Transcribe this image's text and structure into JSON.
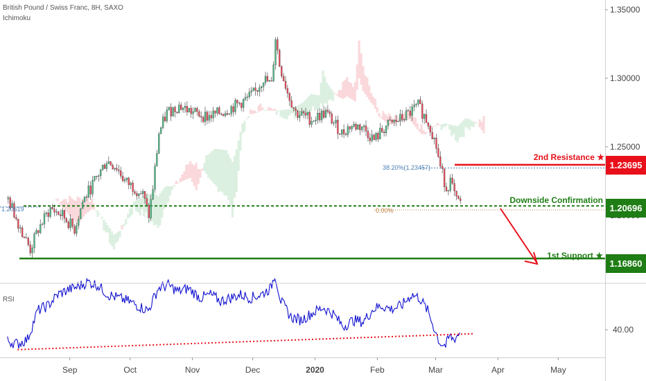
{
  "header": {
    "title": "British Pound / Swiss Franc, 8H, SAXO",
    "indicator": "Ichimoku",
    "rsi_label": "RSI"
  },
  "colors": {
    "up": "#53b987",
    "down": "#eb4d5c",
    "resistance": "#e8101a",
    "support": "#1e7d14",
    "rsi": "#1010d0",
    "fib": "#4a7fb5",
    "cloud_red": "#f8c9cd",
    "cloud_green": "#cfe9d6"
  },
  "annotations": {
    "resistance_label": "2nd Resistance ★",
    "resistance_value": "1.23695",
    "confirm_label": "Downside Confirmation",
    "confirm_value": "1.20696",
    "support_label": "1st Support ★",
    "support_value": "1.16860",
    "fib_label": "38.20%(1.23457)",
    "left_label": "1.20619",
    "fib_zero_label": "0.00%"
  },
  "chart_data": [
    {
      "type": "candlestick",
      "title": "British Pound / Swiss Franc, 8H, SAXO",
      "y_ticks": [
        "1.35000",
        "1.30000",
        "1.25000",
        "1.20000"
      ],
      "x_ticks": [
        "Sep",
        "Oct",
        "Nov",
        "Dec",
        "2020",
        "Feb",
        "Mar",
        "Apr",
        "May"
      ],
      "ylim": [
        1.155,
        1.355
      ],
      "levels": [
        {
          "name": "2nd Resistance",
          "value": 1.23695
        },
        {
          "name": "Downside Confirmation",
          "value": 1.20696
        },
        {
          "name": "1st Support",
          "value": 1.1686
        }
      ],
      "fib_level": {
        "label": "38.20%",
        "value": 1.23457
      },
      "close_anchors": [
        [
          "2019-08-01",
          1.212
        ],
        [
          "2019-08-08",
          1.188
        ],
        [
          "2019-08-12",
          1.175
        ],
        [
          "2019-08-16",
          1.19
        ],
        [
          "2019-08-22",
          1.205
        ],
        [
          "2019-08-28",
          1.2
        ],
        [
          "2019-09-03",
          1.19
        ],
        [
          "2019-09-07",
          1.21
        ],
        [
          "2019-09-13",
          1.225
        ],
        [
          "2019-09-19",
          1.24
        ],
        [
          "2019-09-24",
          1.235
        ],
        [
          "2019-09-28",
          1.225
        ],
        [
          "2019-10-03",
          1.22
        ],
        [
          "2019-10-07",
          1.215
        ],
        [
          "2019-10-10",
          1.2
        ],
        [
          "2019-10-12",
          1.22
        ],
        [
          "2019-10-15",
          1.26
        ],
        [
          "2019-10-19",
          1.275
        ],
        [
          "2019-10-25",
          1.28
        ],
        [
          "2019-11-01",
          1.275
        ],
        [
          "2019-11-08",
          1.272
        ],
        [
          "2019-11-15",
          1.275
        ],
        [
          "2019-11-22",
          1.28
        ],
        [
          "2019-11-28",
          1.285
        ],
        [
          "2019-12-02",
          1.29
        ],
        [
          "2019-12-06",
          1.3
        ],
        [
          "2019-12-10",
          1.295
        ],
        [
          "2019-12-12",
          1.33
        ],
        [
          "2019-12-14",
          1.31
        ],
        [
          "2019-12-18",
          1.29
        ],
        [
          "2019-12-22",
          1.275
        ],
        [
          "2019-12-30",
          1.27
        ],
        [
          "2020-01-06",
          1.275
        ],
        [
          "2020-01-14",
          1.26
        ],
        [
          "2020-01-18",
          1.265
        ],
        [
          "2020-01-24",
          1.265
        ],
        [
          "2020-01-30",
          1.255
        ],
        [
          "2020-02-05",
          1.265
        ],
        [
          "2020-02-12",
          1.27
        ],
        [
          "2020-02-17",
          1.275
        ],
        [
          "2020-02-21",
          1.28
        ],
        [
          "2020-02-25",
          1.27
        ],
        [
          "2020-02-27",
          1.265
        ],
        [
          "2020-03-01",
          1.25
        ],
        [
          "2020-03-03",
          1.235
        ],
        [
          "2020-03-06",
          1.22
        ],
        [
          "2020-03-08",
          1.225
        ],
        [
          "2020-03-11",
          1.21
        ],
        [
          "2020-03-13",
          1.21
        ]
      ]
    },
    {
      "type": "line",
      "title": "RSI",
      "y_ticks": [
        "40.00"
      ],
      "ylim": [
        20,
        85
      ],
      "trendline": {
        "x": [
          "2019-08-06",
          "2020-03-20"
        ],
        "y": [
          27.5,
          37.5
        ]
      },
      "rsi_anchors": [
        [
          "2019-08-01",
          33
        ],
        [
          "2019-08-06",
          31
        ],
        [
          "2019-08-11",
          34
        ],
        [
          "2019-08-16",
          52
        ],
        [
          "2019-08-21",
          55
        ],
        [
          "2019-08-26",
          62
        ],
        [
          "2019-08-31",
          65
        ],
        [
          "2019-09-05",
          67
        ],
        [
          "2019-09-10",
          70
        ],
        [
          "2019-09-15",
          68
        ],
        [
          "2019-09-20",
          62
        ],
        [
          "2019-09-25",
          60
        ],
        [
          "2019-09-30",
          58
        ],
        [
          "2019-10-05",
          55
        ],
        [
          "2019-10-10",
          52
        ],
        [
          "2019-10-15",
          66
        ],
        [
          "2019-10-20",
          68
        ],
        [
          "2019-10-25",
          64
        ],
        [
          "2019-10-30",
          66
        ],
        [
          "2019-11-05",
          60
        ],
        [
          "2019-11-10",
          62
        ],
        [
          "2019-11-15",
          58
        ],
        [
          "2019-11-20",
          60
        ],
        [
          "2019-11-25",
          62
        ],
        [
          "2019-11-30",
          60
        ],
        [
          "2019-12-05",
          62
        ],
        [
          "2019-12-10",
          66
        ],
        [
          "2019-12-12",
          75
        ],
        [
          "2019-12-15",
          58
        ],
        [
          "2019-12-20",
          48
        ],
        [
          "2019-12-25",
          46
        ],
        [
          "2019-12-30",
          50
        ],
        [
          "2020-01-05",
          54
        ],
        [
          "2020-01-10",
          50
        ],
        [
          "2020-01-15",
          42
        ],
        [
          "2020-01-20",
          46
        ],
        [
          "2020-01-25",
          45
        ],
        [
          "2020-01-30",
          53
        ],
        [
          "2020-02-03",
          55
        ],
        [
          "2020-02-08",
          53
        ],
        [
          "2020-02-13",
          55
        ],
        [
          "2020-02-18",
          62
        ],
        [
          "2020-02-22",
          60
        ],
        [
          "2020-02-26",
          52
        ],
        [
          "2020-02-29",
          42
        ],
        [
          "2020-03-03",
          32
        ],
        [
          "2020-03-06",
          30
        ],
        [
          "2020-03-08",
          36
        ],
        [
          "2020-03-10",
          34
        ],
        [
          "2020-03-13",
          38
        ]
      ]
    }
  ]
}
